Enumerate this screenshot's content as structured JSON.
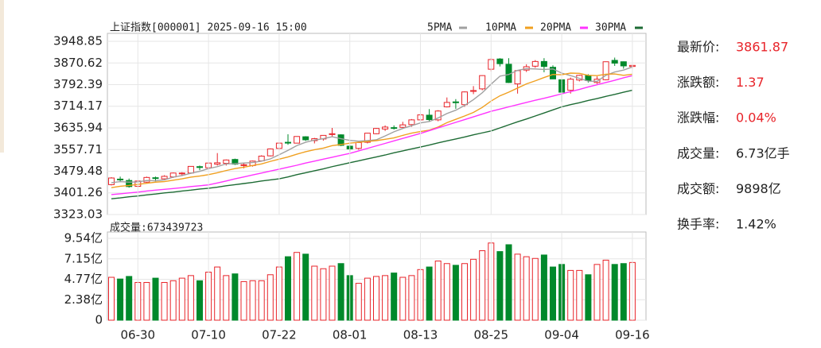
{
  "chart_data": [
    {
      "type": "candlestick",
      "title": "上证指数[000001] 2025-09-16 15:00",
      "up_color": "#e8242a",
      "down_color": "#00892b",
      "open": [
        3431,
        3451,
        3446,
        3425,
        3440,
        3456,
        3452,
        3459,
        3470,
        3473,
        3496,
        3492,
        3505,
        3508,
        3522,
        3500,
        3500,
        3517,
        3535,
        3562,
        3584,
        3581,
        3604,
        3590,
        3596,
        3612,
        3611,
        3570,
        3562,
        3584,
        3615,
        3632,
        3637,
        3638,
        3648,
        3665,
        3682,
        3665,
        3712,
        3730,
        3720,
        3768,
        3777,
        3848,
        3885,
        3866,
        3795,
        3845,
        3859,
        3876,
        3855,
        3810,
        3772,
        3809,
        3825,
        3800,
        3810,
        3880,
        3875,
        3858
      ],
      "high": [
        3458,
        3460,
        3453,
        3447,
        3460,
        3460,
        3465,
        3475,
        3476,
        3498,
        3500,
        3510,
        3545,
        3522,
        3525,
        3510,
        3518,
        3537,
        3562,
        3584,
        3613,
        3606,
        3606,
        3600,
        3610,
        3636,
        3613,
        3575,
        3584,
        3618,
        3636,
        3645,
        3645,
        3658,
        3668,
        3688,
        3704,
        3700,
        3746,
        3740,
        3768,
        3787,
        3826,
        3888,
        3888,
        3888,
        3845,
        3866,
        3881,
        3888,
        3862,
        3810,
        3818,
        3828,
        3830,
        3822,
        3876,
        3890,
        3876,
        3863
      ],
      "low": [
        3428,
        3440,
        3420,
        3422,
        3438,
        3443,
        3450,
        3455,
        3462,
        3470,
        3483,
        3485,
        3500,
        3500,
        3502,
        3490,
        3496,
        3514,
        3533,
        3556,
        3575,
        3580,
        3589,
        3580,
        3590,
        3605,
        3570,
        3550,
        3557,
        3580,
        3613,
        3625,
        3630,
        3635,
        3640,
        3660,
        3660,
        3660,
        3710,
        3705,
        3712,
        3758,
        3772,
        3840,
        3858,
        3798,
        3760,
        3838,
        3853,
        3837,
        3813,
        3731,
        3760,
        3804,
        3800,
        3795,
        3808,
        3860,
        3850,
        3850
      ],
      "close": [
        3455,
        3448,
        3424,
        3444,
        3457,
        3454,
        3461,
        3473,
        3473,
        3497,
        3493,
        3509,
        3510,
        3520,
        3505,
        3503,
        3516,
        3534,
        3560,
        3581,
        3582,
        3605,
        3593,
        3597,
        3609,
        3615,
        3573,
        3560,
        3583,
        3617,
        3634,
        3639,
        3635,
        3647,
        3665,
        3683,
        3666,
        3697,
        3728,
        3727,
        3766,
        3771,
        3825,
        3883,
        3868,
        3800,
        3843,
        3857,
        3876,
        3858,
        3813,
        3765,
        3812,
        3826,
        3807,
        3812,
        3875,
        3870,
        3860,
        3861.87
      ],
      "series": [
        {
          "name": "5PMA",
          "color": "#a0a0a0",
          "values": [
            3438,
            3442,
            3440,
            3441,
            3446,
            3445,
            3448,
            3458,
            3464,
            3472,
            3479,
            3489,
            3496,
            3506,
            3507,
            3509,
            3511,
            3516,
            3524,
            3539,
            3555,
            3572,
            3584,
            3592,
            3597,
            3604,
            3597,
            3591,
            3588,
            3590,
            3593,
            3607,
            3622,
            3634,
            3644,
            3654,
            3659,
            3672,
            3688,
            3700,
            3717,
            3738,
            3763,
            3794,
            3823,
            3829,
            3844,
            3850,
            3849,
            3847,
            3849,
            3834,
            3825,
            3815,
            3805,
            3804,
            3826,
            3838,
            3845,
            3856
          ]
        },
        {
          "name": "10PMA",
          "color": "#f0a020",
          "values": [
            3420,
            3425,
            3428,
            3432,
            3436,
            3440,
            3442,
            3447,
            3452,
            3458,
            3462,
            3467,
            3474,
            3482,
            3489,
            3494,
            3500,
            3506,
            3515,
            3523,
            3531,
            3541,
            3550,
            3557,
            3563,
            3572,
            3576,
            3581,
            3584,
            3587,
            3590,
            3595,
            3600,
            3609,
            3617,
            3623,
            3628,
            3639,
            3655,
            3667,
            3679,
            3692,
            3710,
            3733,
            3752,
            3765,
            3780,
            3795,
            3806,
            3818,
            3829,
            3828,
            3834,
            3833,
            3826,
            3825,
            3830,
            3831,
            3826,
            3830
          ]
        },
        {
          "name": "20PMA",
          "color": "#ff33ff",
          "values": [
            3395,
            3398,
            3401,
            3404,
            3408,
            3411,
            3414,
            3417,
            3420,
            3424,
            3427,
            3430,
            3437,
            3444,
            3452,
            3459,
            3466,
            3473,
            3480,
            3487,
            3494,
            3501,
            3509,
            3516,
            3523,
            3530,
            3537,
            3544,
            3553,
            3562,
            3571,
            3580,
            3589,
            3598,
            3607,
            3616,
            3626,
            3636,
            3646,
            3656,
            3666,
            3676,
            3686,
            3696,
            3704,
            3712,
            3720,
            3728,
            3736,
            3743,
            3751,
            3759,
            3767,
            3775,
            3784,
            3792,
            3800,
            3808,
            3817,
            3825
          ]
        },
        {
          "name": "30PMA",
          "color": "#1d6b34",
          "values": [
            3380,
            3383,
            3387,
            3390,
            3394,
            3397,
            3401,
            3404,
            3408,
            3411,
            3415,
            3418,
            3422,
            3427,
            3431,
            3435,
            3439,
            3444,
            3448,
            3452,
            3459,
            3467,
            3474,
            3481,
            3488,
            3496,
            3503,
            3510,
            3517,
            3524,
            3531,
            3538,
            3546,
            3553,
            3560,
            3567,
            3574,
            3582,
            3589,
            3596,
            3603,
            3611,
            3618,
            3625,
            3636,
            3647,
            3658,
            3668,
            3679,
            3690,
            3701,
            3712,
            3720,
            3727,
            3735,
            3742,
            3750,
            3757,
            3765,
            3772
          ]
        }
      ],
      "ylim": [
        3323.03,
        3948.85
      ],
      "yticks": [
        3323.03,
        3401.26,
        3479.48,
        3557.71,
        3635.94,
        3714.17,
        3792.39,
        3870.62,
        3948.85
      ],
      "grid": true
    },
    {
      "type": "bar",
      "title": "成交量:673439723",
      "categories": [
        null,
        null,
        null,
        "06-30",
        null,
        null,
        null,
        null,
        null,
        null,
        null,
        "07-10",
        null,
        null,
        null,
        null,
        null,
        null,
        null,
        "07-22",
        null,
        null,
        null,
        null,
        null,
        null,
        null,
        "08-01",
        null,
        null,
        null,
        null,
        null,
        null,
        null,
        "08-13",
        null,
        null,
        null,
        null,
        null,
        null,
        null,
        "08-25",
        null,
        null,
        null,
        null,
        null,
        null,
        null,
        "09-04",
        null,
        null,
        null,
        null,
        null,
        null,
        null,
        "09-16"
      ],
      "values": [
        5.0,
        4.8,
        5.1,
        4.4,
        4.4,
        4.9,
        4.4,
        4.6,
        4.9,
        5.2,
        4.6,
        5.6,
        6.2,
        5.2,
        5.4,
        4.5,
        4.6,
        4.6,
        5.3,
        6.2,
        7.4,
        7.9,
        7.7,
        6.3,
        6.0,
        6.3,
        6.6,
        5.2,
        4.3,
        4.9,
        5.1,
        5.2,
        5.5,
        5.0,
        5.2,
        5.9,
        6.2,
        6.9,
        6.6,
        6.4,
        6.6,
        7.1,
        8.1,
        9.0,
        8.0,
        8.8,
        7.7,
        7.4,
        7.2,
        7.6,
        6.2,
        6.5,
        5.8,
        5.8,
        5.3,
        6.5,
        7.0,
        6.5,
        6.6,
        6.73
      ],
      "ylim": [
        0,
        9.54
      ],
      "yticks": [
        0,
        {
          "value": 2.38,
          "label": "2.38亿"
        },
        {
          "value": 4.77,
          "label": "4.77亿"
        },
        {
          "value": 7.15,
          "label": "7.15亿"
        },
        {
          "value": 9.54,
          "label": "9.54亿"
        }
      ],
      "grid": true
    }
  ],
  "info": [
    {
      "label": "最新价:",
      "value": "3861.87",
      "color": "#e8242a"
    },
    {
      "label": "涨跌额:",
      "value": "1.37",
      "color": "#e8242a"
    },
    {
      "label": "涨跌幅:",
      "value": "0.04%",
      "color": "#e8242a"
    },
    {
      "label": "成交量:",
      "value": "6.73亿手",
      "color": "#222222"
    },
    {
      "label": "成交额:",
      "value": "9898亿",
      "color": "#222222"
    },
    {
      "label": "换手率:",
      "value": "1.42%",
      "color": "#222222"
    }
  ]
}
